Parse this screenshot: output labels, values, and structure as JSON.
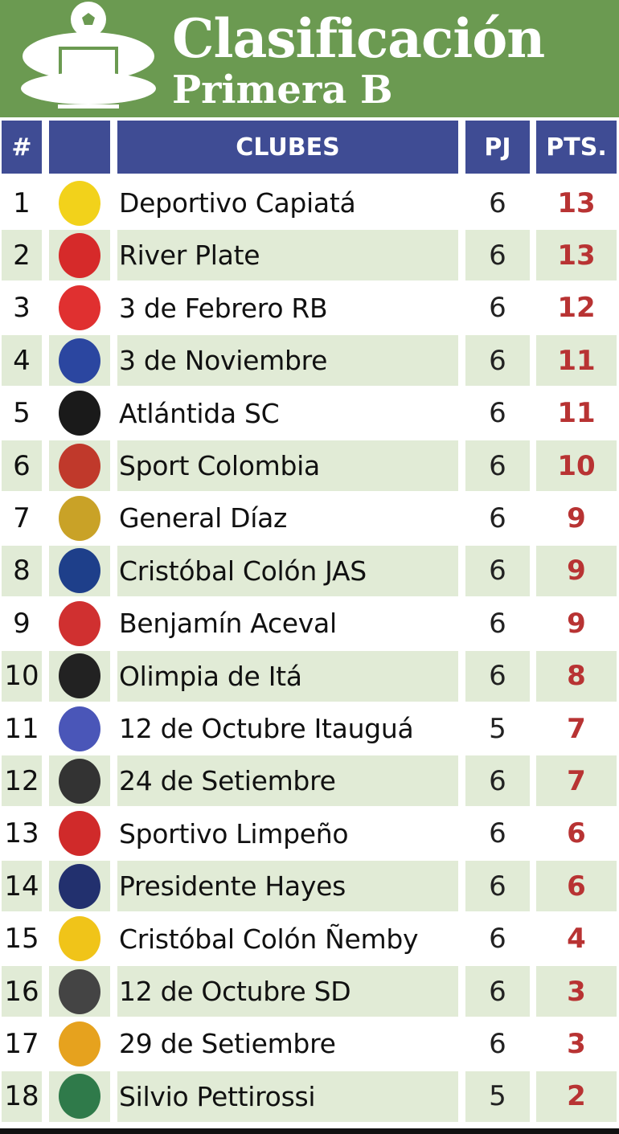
{
  "header": {
    "title": "Clasificación",
    "subtitle": "Primera B"
  },
  "columns": {
    "rank": "#",
    "logo": "",
    "club": "CLUBES",
    "played": "PJ",
    "points": "PTS."
  },
  "colors": {
    "banner": "#6b9a51",
    "header": "#3f4c94",
    "alt_row": "#e1ebd6",
    "points": "#b83333"
  },
  "rows": [
    {
      "rank": "1",
      "club": "Deportivo Capiatá",
      "pj": "6",
      "pts": "13",
      "logo_color": "#f2d21b"
    },
    {
      "rank": "2",
      "club": "River Plate",
      "pj": "6",
      "pts": "13",
      "logo_color": "#d62a2a"
    },
    {
      "rank": "3",
      "club": "3 de Febrero RB",
      "pj": "6",
      "pts": "12",
      "logo_color": "#e03030"
    },
    {
      "rank": "4",
      "club": "3 de Noviembre",
      "pj": "6",
      "pts": "11",
      "logo_color": "#2b46a0"
    },
    {
      "rank": "5",
      "club": "Atlántida SC",
      "pj": "6",
      "pts": "11",
      "logo_color": "#1a1a1a"
    },
    {
      "rank": "6",
      "club": "Sport Colombia",
      "pj": "6",
      "pts": "10",
      "logo_color": "#c0392b"
    },
    {
      "rank": "7",
      "club": "General Díaz",
      "pj": "6",
      "pts": "9",
      "logo_color": "#c9a227"
    },
    {
      "rank": "8",
      "club": "Cristóbal Colón JAS",
      "pj": "6",
      "pts": "9",
      "logo_color": "#1e3f8a"
    },
    {
      "rank": "9",
      "club": "Benjamín Aceval",
      "pj": "6",
      "pts": "9",
      "logo_color": "#d03030"
    },
    {
      "rank": "10",
      "club": "Olimpia de Itá",
      "pj": "6",
      "pts": "8",
      "logo_color": "#222222"
    },
    {
      "rank": "11",
      "club": "12 de Octubre Itauguá",
      "pj": "5",
      "pts": "7",
      "logo_color": "#4a56b8"
    },
    {
      "rank": "12",
      "club": "24 de Setiembre",
      "pj": "6",
      "pts": "7",
      "logo_color": "#333333"
    },
    {
      "rank": "13",
      "club": "Sportivo Limpeño",
      "pj": "6",
      "pts": "6",
      "logo_color": "#d02a2a"
    },
    {
      "rank": "14",
      "club": "Presidente Hayes",
      "pj": "6",
      "pts": "6",
      "logo_color": "#22306e"
    },
    {
      "rank": "15",
      "club": "Cristóbal Colón Ñemby",
      "pj": "6",
      "pts": "4",
      "logo_color": "#f0c419"
    },
    {
      "rank": "16",
      "club": "12 de Octubre SD",
      "pj": "6",
      "pts": "3",
      "logo_color": "#444444"
    },
    {
      "rank": "17",
      "club": "29 de Setiembre",
      "pj": "6",
      "pts": "3",
      "logo_color": "#e6a21e"
    },
    {
      "rank": "18",
      "club": "Silvio Pettirossi",
      "pj": "5",
      "pts": "2",
      "logo_color": "#2f7a4a"
    }
  ]
}
